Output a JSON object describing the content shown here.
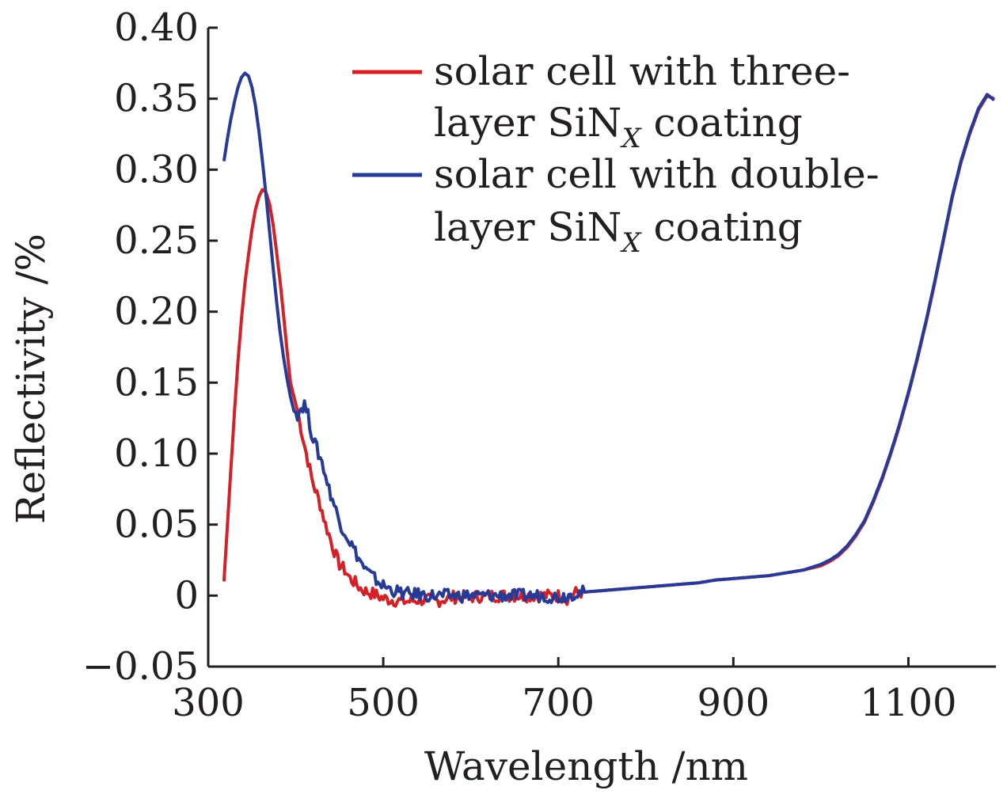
{
  "chart_data": {
    "type": "line",
    "title": "",
    "xlabel": "Wavelength /nm",
    "ylabel": "Reflectivity /%",
    "xlim": [
      300,
      1200
    ],
    "ylim": [
      -0.05,
      0.4
    ],
    "xticks": [
      300,
      500,
      700,
      900,
      1100
    ],
    "xtick_labels": [
      "300",
      "500",
      "700",
      "900",
      "1100"
    ],
    "yticks": [
      -0.05,
      0,
      0.05,
      0.1,
      0.15,
      0.2,
      0.25,
      0.3,
      0.35,
      0.4
    ],
    "ytick_labels": [
      "−0.05",
      "0",
      "0.05",
      "0.10",
      "0.15",
      "0.20",
      "0.25",
      "0.30",
      "0.35",
      "0.40"
    ],
    "grid": false,
    "legend_position": "top-right",
    "series": [
      {
        "name": "solar cell with three-layer SiN_X coating",
        "legend_lines": [
          {
            "text": "solar cell with three-",
            "sub": ""
          },
          {
            "text": "layer SiN",
            "sub": "X",
            "tail": " coating"
          }
        ],
        "color": "#d62027",
        "x": [
          318,
          322,
          326,
          330,
          334,
          338,
          342,
          346,
          350,
          354,
          358,
          362,
          366,
          370,
          374,
          378,
          382,
          386,
          390,
          394,
          398,
          402,
          406,
          410,
          414,
          418,
          422,
          426,
          430,
          434,
          438,
          442,
          446,
          450,
          456,
          462,
          468,
          474,
          480,
          490,
          500,
          510,
          520,
          530,
          540,
          550,
          560,
          580,
          600,
          620,
          640,
          660,
          680,
          700,
          710,
          720,
          740,
          760,
          780,
          800,
          820,
          840,
          860,
          880,
          900,
          920,
          940,
          960,
          980,
          1000,
          1010,
          1020,
          1030,
          1040,
          1050,
          1060,
          1070,
          1080,
          1090,
          1100,
          1110,
          1120,
          1130,
          1140,
          1150,
          1160,
          1170,
          1180,
          1190,
          1198
        ],
        "y": [
          0.01,
          0.05,
          0.09,
          0.13,
          0.165,
          0.195,
          0.22,
          0.24,
          0.258,
          0.272,
          0.281,
          0.286,
          0.284,
          0.276,
          0.262,
          0.243,
          0.222,
          0.198,
          0.173,
          0.15,
          0.14,
          0.13,
          0.118,
          0.106,
          0.095,
          0.083,
          0.075,
          0.068,
          0.06,
          0.05,
          0.043,
          0.035,
          0.028,
          0.022,
          0.018,
          0.012,
          0.009,
          0.005,
          0.003,
          0.001,
          -0.002,
          -0.003,
          -0.004,
          -0.004,
          -0.003,
          -0.003,
          -0.004,
          -0.001,
          -0.001,
          0.0,
          0.0,
          0.0,
          0.0,
          0.0,
          -0.002,
          0.002,
          0.003,
          0.004,
          0.005,
          0.006,
          0.007,
          0.008,
          0.009,
          0.011,
          0.012,
          0.013,
          0.014,
          0.016,
          0.018,
          0.021,
          0.024,
          0.028,
          0.034,
          0.042,
          0.052,
          0.066,
          0.082,
          0.1,
          0.12,
          0.142,
          0.166,
          0.192,
          0.22,
          0.25,
          0.28,
          0.305,
          0.325,
          0.342,
          0.352,
          0.35
        ]
      },
      {
        "name": "solar cell with double-layer SiN_X coating",
        "legend_lines": [
          {
            "text": "solar cell with double-",
            "sub": ""
          },
          {
            "text": "layer SiN",
            "sub": "X",
            "tail": " coating"
          }
        ],
        "color": "#263a96",
        "x": [
          318,
          322,
          326,
          330,
          334,
          338,
          342,
          346,
          350,
          354,
          358,
          362,
          366,
          370,
          374,
          378,
          382,
          386,
          390,
          394,
          398,
          402,
          406,
          410,
          414,
          418,
          422,
          426,
          430,
          434,
          438,
          442,
          446,
          450,
          456,
          462,
          468,
          474,
          480,
          490,
          500,
          510,
          520,
          530,
          540,
          550,
          560,
          580,
          600,
          620,
          640,
          660,
          680,
          700,
          710,
          720,
          740,
          760,
          780,
          800,
          820,
          840,
          860,
          880,
          900,
          920,
          940,
          960,
          980,
          1000,
          1010,
          1020,
          1030,
          1040,
          1050,
          1060,
          1070,
          1080,
          1090,
          1100,
          1110,
          1120,
          1130,
          1140,
          1150,
          1160,
          1170,
          1180,
          1190,
          1198
        ],
        "y": [
          0.306,
          0.322,
          0.336,
          0.348,
          0.358,
          0.365,
          0.368,
          0.366,
          0.358,
          0.345,
          0.327,
          0.306,
          0.282,
          0.257,
          0.232,
          0.208,
          0.186,
          0.168,
          0.153,
          0.14,
          0.13,
          0.128,
          0.132,
          0.135,
          0.127,
          0.115,
          0.107,
          0.1,
          0.094,
          0.085,
          0.075,
          0.068,
          0.06,
          0.052,
          0.045,
          0.038,
          0.031,
          0.024,
          0.018,
          0.012,
          0.007,
          0.004,
          0.002,
          0.001,
          0.001,
          0.0,
          0.0,
          0.0,
          0.0,
          0.0,
          0.0,
          0.0,
          0.0,
          -0.001,
          0.0,
          0.002,
          0.003,
          0.004,
          0.005,
          0.006,
          0.007,
          0.008,
          0.009,
          0.011,
          0.012,
          0.013,
          0.014,
          0.016,
          0.018,
          0.022,
          0.025,
          0.029,
          0.035,
          0.043,
          0.053,
          0.067,
          0.083,
          0.101,
          0.121,
          0.143,
          0.167,
          0.193,
          0.221,
          0.251,
          0.281,
          0.306,
          0.326,
          0.343,
          0.353,
          0.349
        ]
      }
    ]
  }
}
